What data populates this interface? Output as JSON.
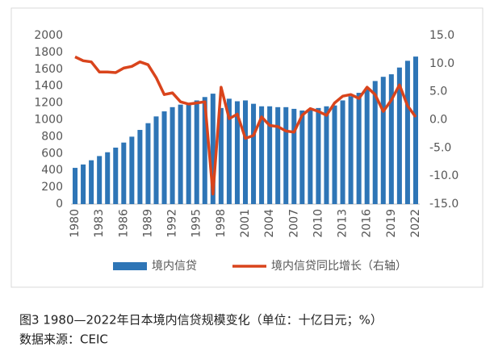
{
  "chart_data": {
    "type": "bar-line",
    "caption": "图3  1980—2022年日本境内信贷规模变化（单位：十亿日元；%）",
    "source": "数据来源：CEIC",
    "categories": [
      "1980",
      null,
      null,
      "1983",
      null,
      null,
      "1986",
      null,
      null,
      "1989",
      null,
      null,
      "1992",
      null,
      null,
      "1995",
      null,
      null,
      "1998",
      null,
      null,
      "2001",
      null,
      null,
      "2004",
      null,
      null,
      "2007",
      null,
      null,
      "2010",
      null,
      null,
      "2013",
      null,
      null,
      "2016",
      null,
      null,
      "2019",
      null,
      null,
      "2022"
    ],
    "series": [
      {
        "name": "境内信贷",
        "type": "bar",
        "color": "#2e75b6",
        "axis": "y",
        "values": [
          430,
          470,
          520,
          570,
          615,
          670,
          730,
          800,
          880,
          960,
          1040,
          1100,
          1150,
          1180,
          1200,
          1230,
          1270,
          1310,
          1140,
          1250,
          1220,
          1230,
          1190,
          1160,
          1160,
          1150,
          1150,
          1130,
          1110,
          1120,
          1140,
          1160,
          1170,
          1230,
          1280,
          1320,
          1370,
          1460,
          1510,
          1540,
          1620,
          1700,
          1750
        ]
      },
      {
        "name": "境内信贷同比增长（右轴）",
        "type": "line",
        "color": "#d9441c",
        "axis": "y2",
        "values": [
          11.2,
          10.5,
          10.3,
          8.5,
          8.5,
          8.4,
          9.2,
          9.5,
          10.3,
          9.8,
          7.5,
          4.5,
          4.8,
          3.2,
          2.8,
          3.0,
          3.2,
          -13.2,
          5.8,
          0.2,
          1.0,
          -3.3,
          -2.8,
          0.5,
          -1.0,
          -1.2,
          -2.0,
          -2.2,
          0.8,
          2.0,
          1.5,
          0.8,
          3.0,
          4.2,
          4.5,
          3.8,
          5.8,
          4.5,
          1.5,
          3.5,
          6.2,
          2.5,
          0.5
        ]
      }
    ],
    "ylim": [
      0,
      2000
    ],
    "yticks": [
      0,
      200,
      400,
      600,
      800,
      1000,
      1200,
      1400,
      1600,
      1800,
      2000
    ],
    "y2lim": [
      -15,
      15
    ],
    "y2ticks": [
      {
        "value": -15,
        "label": "-15.0"
      },
      {
        "value": -10,
        "label": "-10.0"
      },
      {
        "value": -5,
        "label": "-5.0"
      },
      {
        "value": 0,
        "label": "0.0"
      },
      {
        "value": 5,
        "label": "5.0"
      },
      {
        "value": 10,
        "label": "10.0"
      },
      {
        "value": 15,
        "label": "15.0"
      }
    ],
    "legend": "bottom",
    "grid": false
  }
}
